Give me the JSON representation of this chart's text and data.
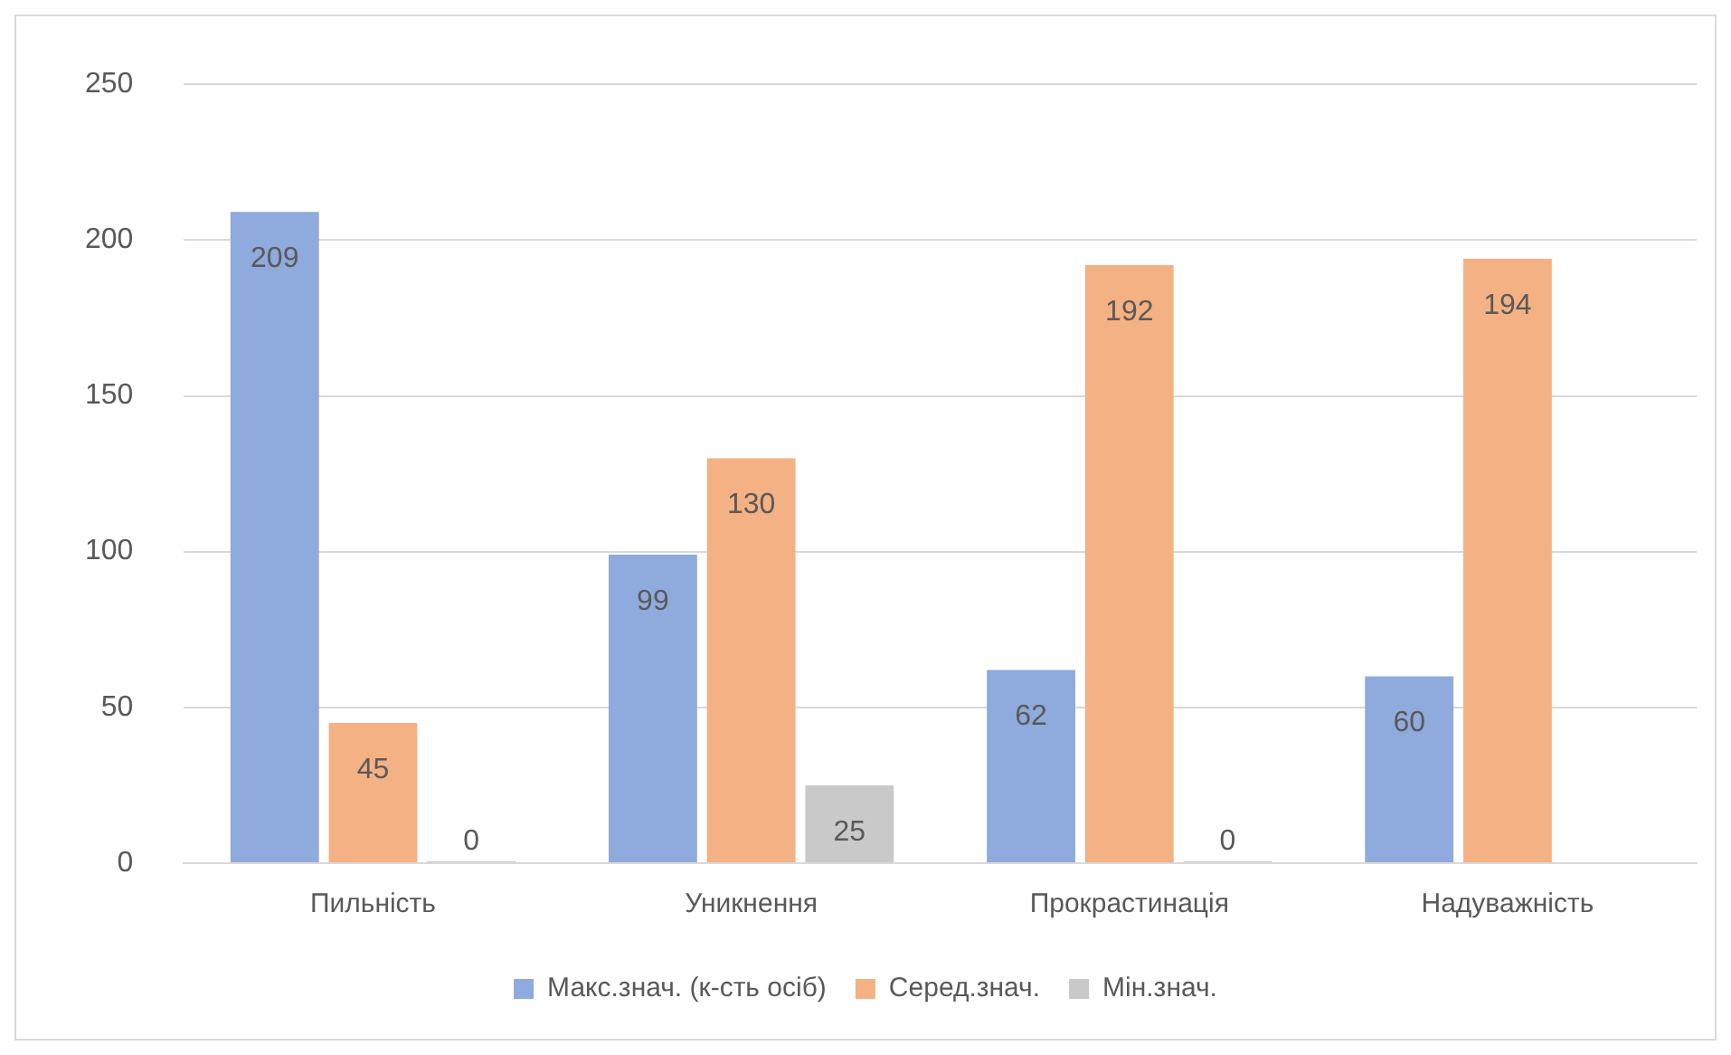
{
  "chart_data": {
    "type": "bar",
    "categories": [
      "Пильність",
      "Уникнення",
      "Прокрастинація",
      "Надуважність"
    ],
    "series": [
      {
        "name": "Макс.знач. (к-сть осіб)",
        "color": "#8faadc",
        "values": [
          209,
          99,
          62,
          60
        ]
      },
      {
        "name": "Серед.знач.",
        "color": "#f4b183",
        "values": [
          45,
          130,
          192,
          194
        ]
      },
      {
        "name": "Мін.знач.",
        "color": "#c9c9c9",
        "values": [
          0,
          25,
          0,
          null
        ]
      }
    ],
    "ylim": [
      0,
      250
    ],
    "yticks": [
      0,
      50,
      100,
      150,
      200,
      250
    ],
    "grid": "y",
    "legend": "bottom",
    "data_labels": true
  }
}
